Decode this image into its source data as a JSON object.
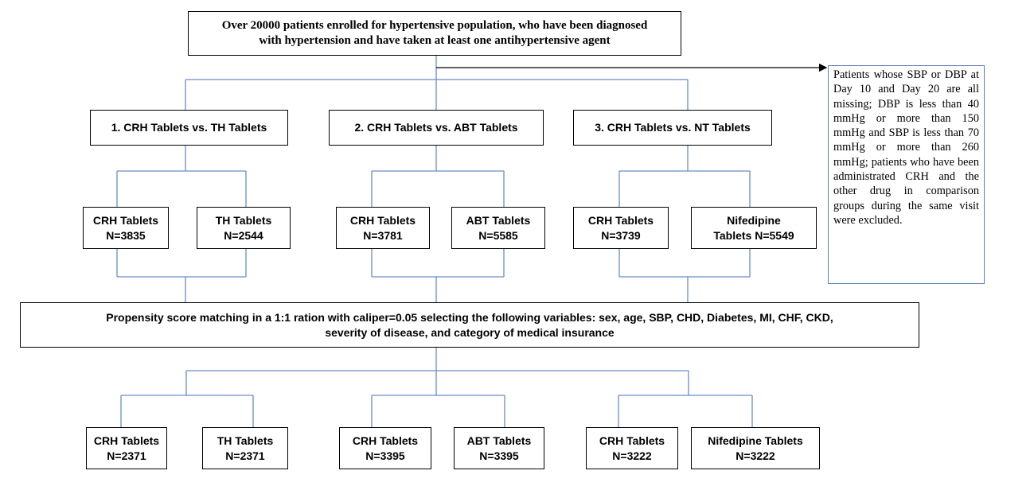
{
  "top": {
    "lines": [
      "Over 20000 patients enrolled for hypertensive population, who have been diagnosed",
      "with hypertension and have taken at least one antihypertensive agent"
    ]
  },
  "exclusion": {
    "text": "Patients whose SBP or DBP at Day 10 and Day 20 are all missing; DBP is less than 40 mmHg or more than 150 mmHg and SBP is less than 70 mmHg or more than 260 mmHg; patients who have been administrated CRH and the other drug in comparison groups during the same visit were excluded."
  },
  "comparisons": [
    "1. CRH Tablets vs. TH Tablets",
    "2. CRH Tablets vs. ABT Tablets",
    "3. CRH Tablets vs. NT Tablets"
  ],
  "groups": [
    [
      "CRH Tablets",
      "N=3835"
    ],
    [
      "TH Tablets",
      "N=2544"
    ],
    [
      "CRH Tablets",
      "N=3781"
    ],
    [
      "ABT Tablets",
      "N=5585"
    ],
    [
      "CRH Tablets",
      "N=3739"
    ],
    [
      "Nifedipine",
      "Tablets N=5549"
    ]
  ],
  "psm": {
    "lines": [
      "Propensity score matching in a 1:1 ration with caliper=0.05 selecting the following variables: sex, age, SBP, CHD, Diabetes, MI, CHF, CKD,",
      "severity of disease, and category of medical insurance"
    ]
  },
  "matched": [
    [
      "CRH Tablets",
      "N=2371"
    ],
    [
      "TH Tablets",
      "N=2371"
    ],
    [
      "CRH Tablets",
      "N=3395"
    ],
    [
      "ABT Tablets",
      "N=3395"
    ],
    [
      "CRH Tablets",
      "N=3222"
    ],
    [
      "Nifedipine Tablets",
      "N=3222"
    ]
  ]
}
